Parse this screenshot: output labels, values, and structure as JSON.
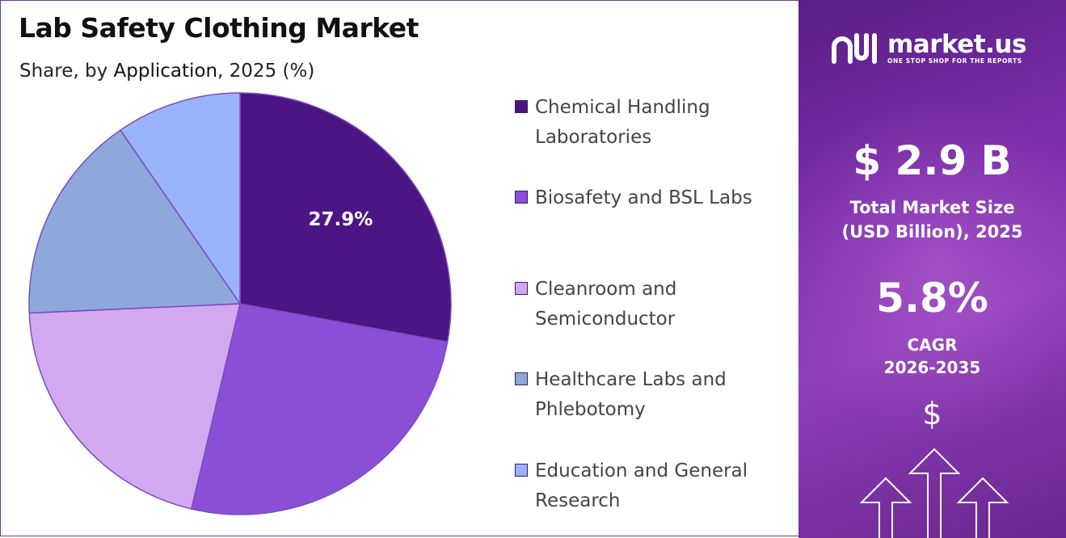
{
  "header": {
    "title": "Lab Safety Clothing Market",
    "subtitle_prefix": "Share, by ",
    "subtitle_strong": "Application",
    "subtitle_suffix": ", 2025 (%)"
  },
  "chart_data": {
    "type": "pie",
    "title": "Lab Safety Clothing Market",
    "subtitle": "Share, by Application, 2025 (%)",
    "categories": [
      "Chemical Handling Laboratories",
      "Biosafety and BSL Labs",
      "Cleanroom and Semiconductor",
      "Healthcare Labs and Phlebotomy",
      "Education and General Research"
    ],
    "values": [
      27.9,
      25.8,
      20.6,
      16.1,
      9.6
    ],
    "colors": [
      "#4b1683",
      "#8a4fd6",
      "#d2a8ef",
      "#8fa8db",
      "#99b4fb"
    ],
    "data_labels": [
      "27.9%",
      "",
      "",
      "",
      ""
    ],
    "legend_position": "right",
    "start_angle_deg": 0,
    "direction": "clockwise"
  },
  "legend": {
    "items": [
      {
        "label_line1": "Chemical Handling",
        "label_line2": "Laboratories",
        "color": "#4b1683"
      },
      {
        "label_line1": "Biosafety and BSL Labs",
        "label_line2": "",
        "color": "#8a4fd6"
      },
      {
        "label_line1": "Cleanroom and",
        "label_line2": "Semiconductor",
        "color": "#d2a8ef"
      },
      {
        "label_line1": "Healthcare Labs and",
        "label_line2": "Phlebotomy",
        "color": "#8fa8db"
      },
      {
        "label_line1": "Education and General",
        "label_line2": "Research",
        "color": "#99b4fb"
      }
    ]
  },
  "sidebar": {
    "brand_name": "market.us",
    "brand_tagline": "ONE STOP SHOP FOR THE REPORTS",
    "market_size_value": "$ 2.9 B",
    "market_size_label_line1": "Total Market Size",
    "market_size_label_line2": "(USD Billion), 2025",
    "cagr_value": "5.8%",
    "cagr_label_line1": "CAGR",
    "cagr_label_line2": "2026-2035",
    "currency_symbol": "$"
  }
}
